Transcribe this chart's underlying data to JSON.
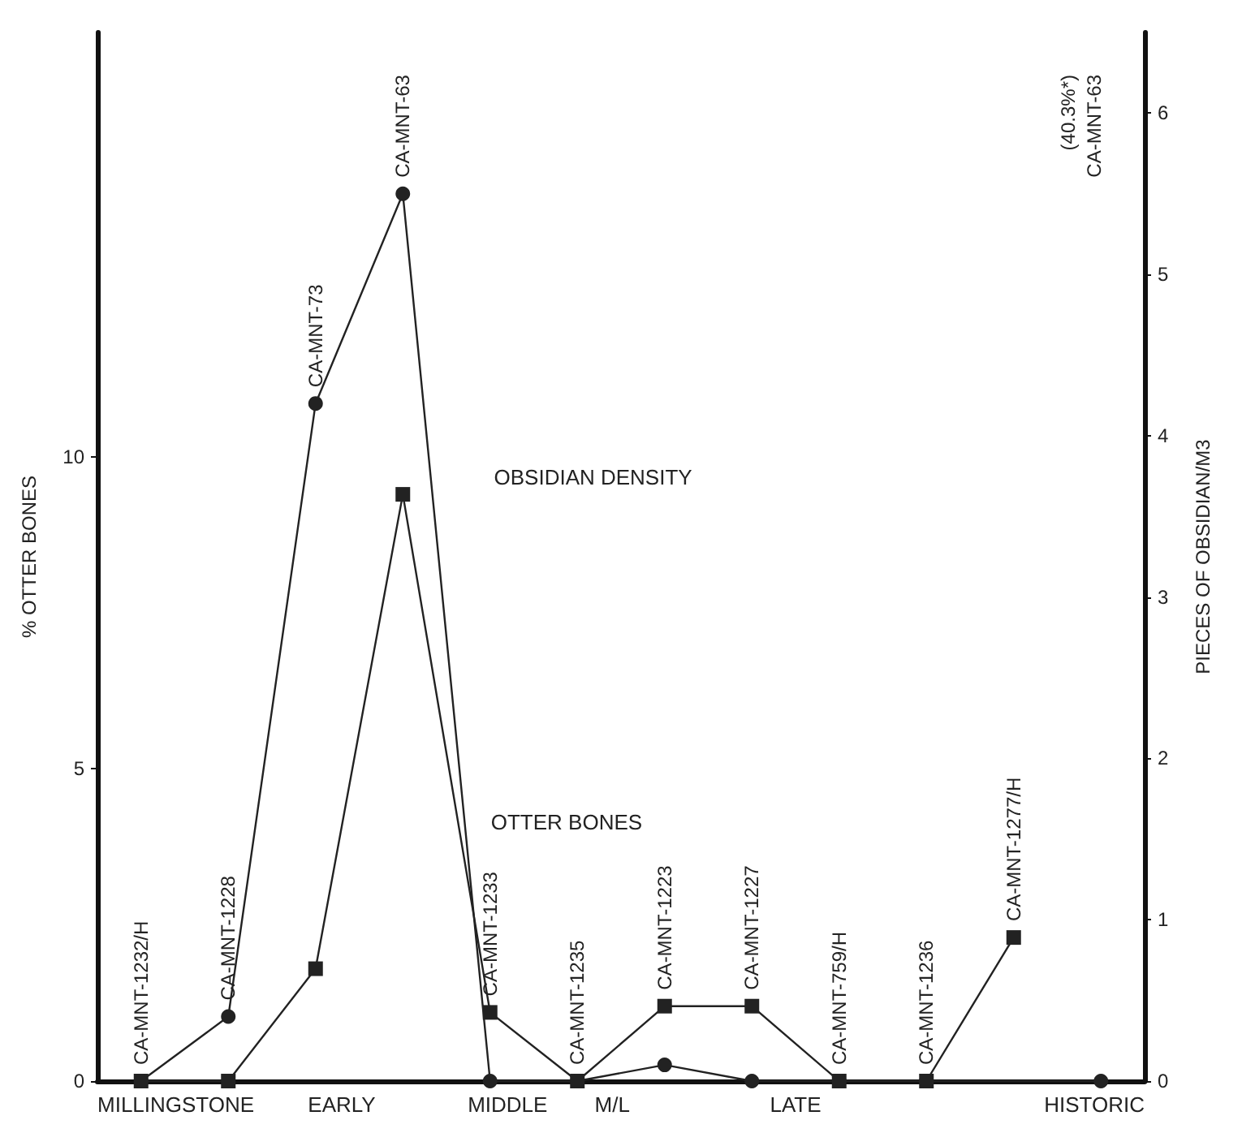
{
  "chart_data": {
    "type": "line",
    "ylabel": "% OTTER BONES",
    "y2label": "PIECES OF OBSIDIAN/M3",
    "categories": [
      null,
      null,
      null,
      null,
      null,
      null,
      null,
      null,
      null,
      null,
      null,
      null
    ],
    "series": [
      {
        "name": "OTTER BONES",
        "color": "#222222",
        "marker": "square",
        "values": [
          0,
          0,
          1.8,
          9.4,
          1.1,
          0,
          1.2,
          1.2,
          0,
          0,
          2.3,
          null
        ]
      },
      {
        "name": "OBSIDIAN DENSITY",
        "color": "#222222",
        "marker": "circle",
        "axis": "y2",
        "values": [
          0,
          0.4,
          4.2,
          5.5,
          0,
          0,
          0.1,
          0,
          0,
          0,
          null,
          0
        ]
      }
    ],
    "ylim": [
      0,
      16.8
    ],
    "yticks": [
      0,
      5,
      10
    ],
    "y2lim": [
      0,
      6.5
    ],
    "y2ticks": [
      0,
      1,
      2,
      3,
      4,
      5,
      6
    ],
    "grid": false,
    "legend": false,
    "line_style": "solid",
    "annotations": [
      "CA-MNT-1232/H",
      "CA-MNT-1228",
      "CA-MNT-73",
      "CA-MNT-63",
      "CA-MNT-1233",
      "CA-MNT-1235",
      "CA-MNT-1223",
      "CA-MNT-1227",
      "CA-MNT-759/H",
      "CA-MNT-1236",
      "CA-MNT-1277/H",
      "CA-MNT-63",
      "(40.3%*)",
      "MILLINGSTONE",
      "EARLY",
      "MIDDLE",
      "M/L",
      "LATE",
      "HISTORIC"
    ]
  }
}
